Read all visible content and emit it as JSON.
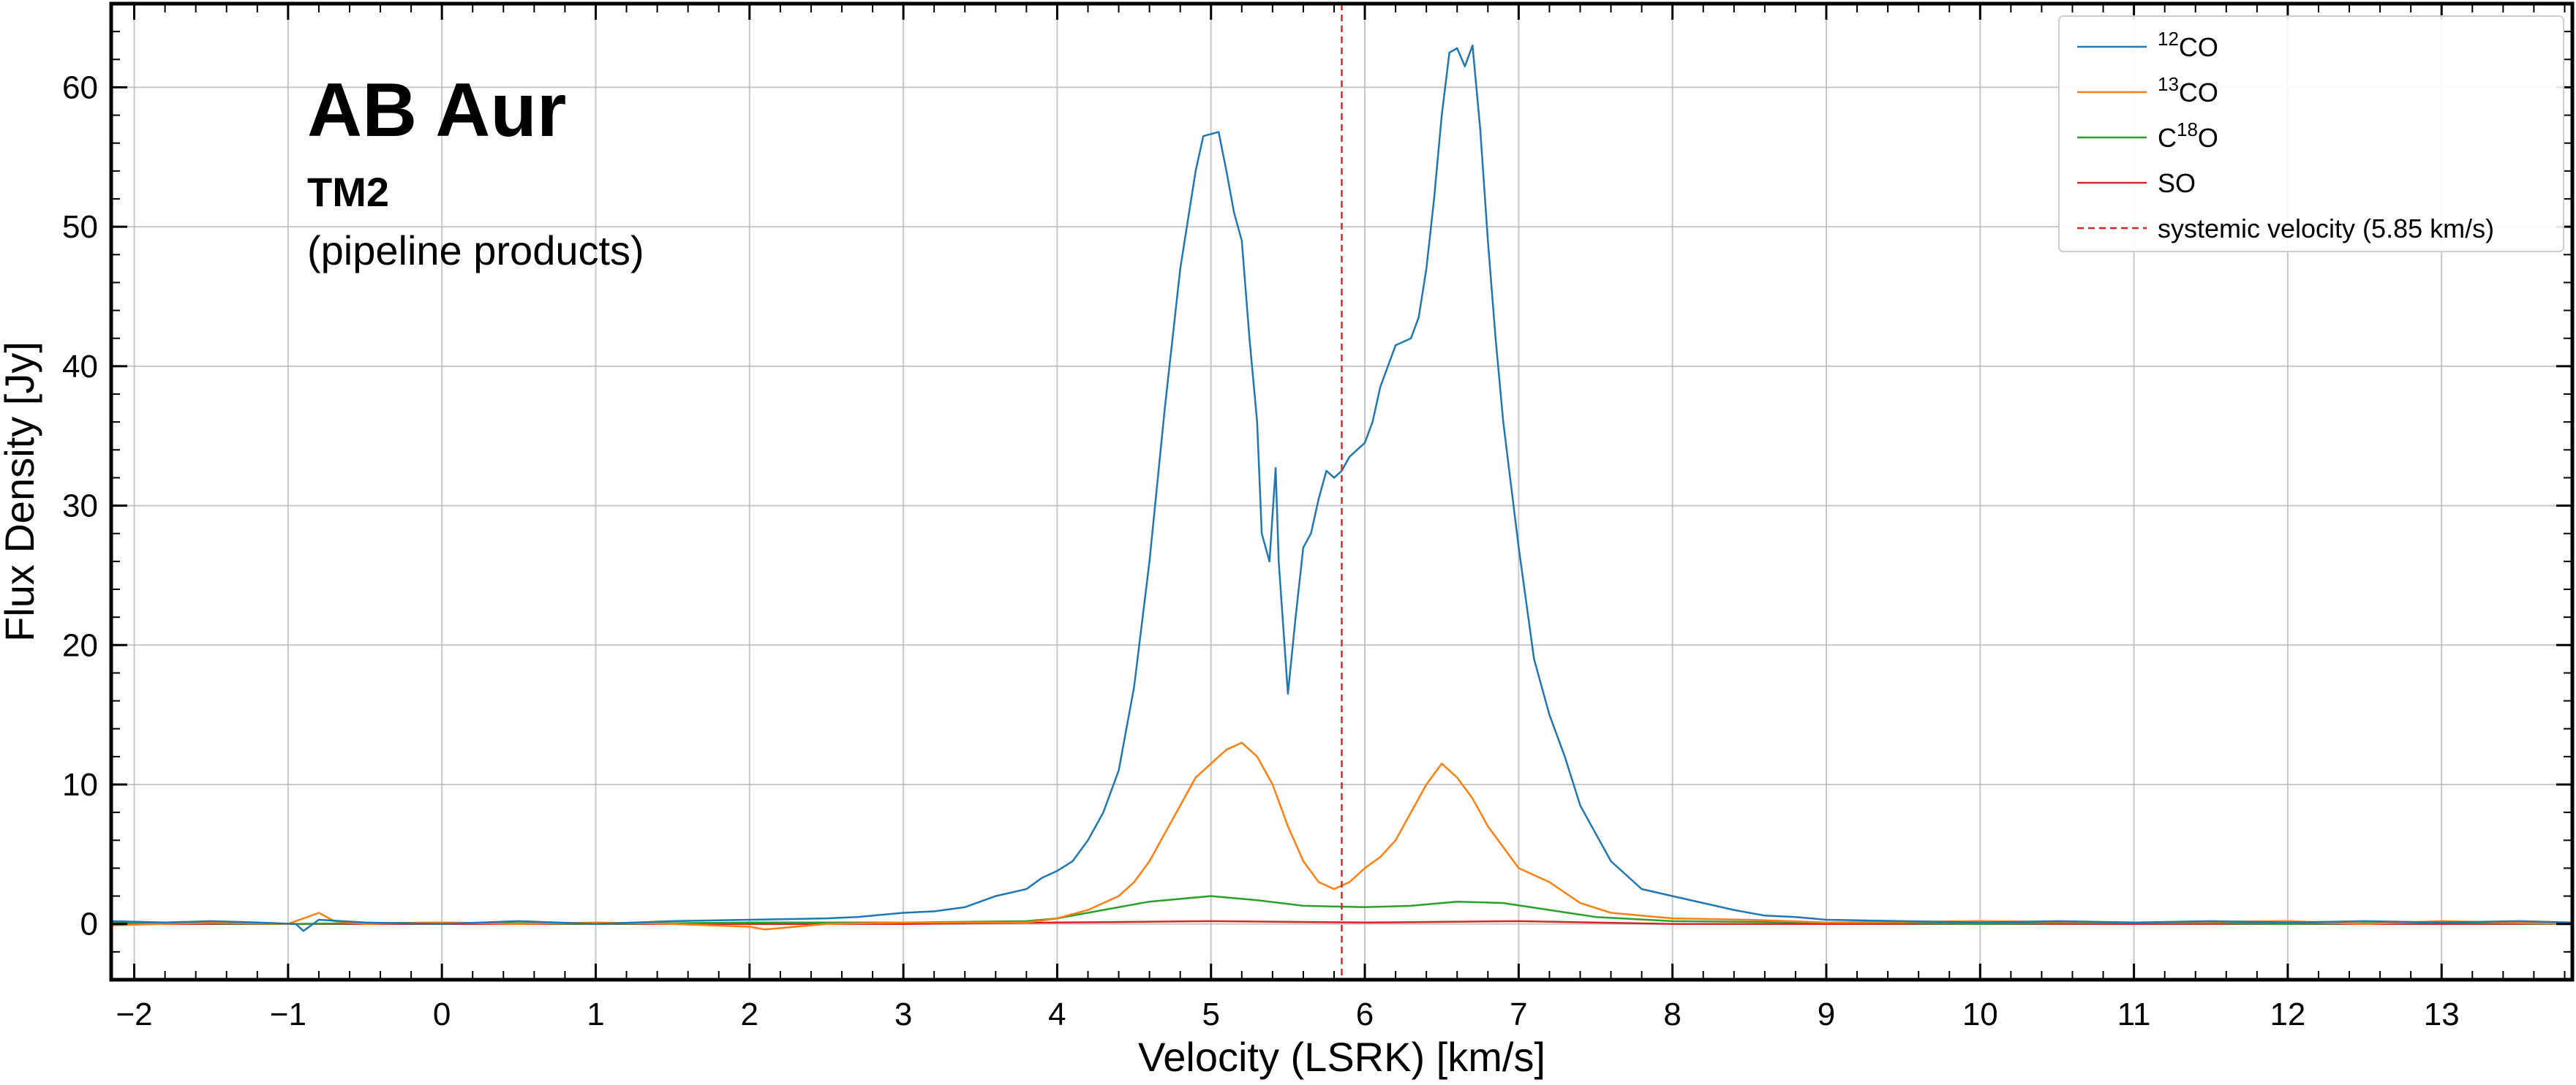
{
  "chart_data": {
    "type": "line",
    "title": "AB Aur",
    "subtitle": "TM2",
    "note": "(pipeline products)",
    "xlabel": "Velocity (LSRK) [km/s]",
    "ylabel": "Flux Density [Jy]",
    "xlim": [
      -2.15,
      13.85
    ],
    "ylim": [
      -4,
      66
    ],
    "xticks": [
      -2,
      -1,
      0,
      1,
      2,
      3,
      4,
      5,
      6,
      7,
      8,
      9,
      10,
      11,
      12,
      13
    ],
    "xtick_labels": [
      "−2",
      "−1",
      "0",
      "1",
      "2",
      "3",
      "4",
      "5",
      "6",
      "7",
      "8",
      "9",
      "10",
      "11",
      "12",
      "13"
    ],
    "yticks": [
      0,
      10,
      20,
      30,
      40,
      50,
      60
    ],
    "ytick_labels": [
      "0",
      "10",
      "20",
      "30",
      "40",
      "50",
      "60"
    ],
    "grid": true,
    "legend_position": "top-right",
    "systemic_velocity": {
      "x": 5.85,
      "label": "systemic velocity (5.85 km/s)",
      "color": "#d62728",
      "style": "dashed"
    },
    "series": [
      {
        "name": "12CO",
        "legend_sup": "12",
        "legend_pre": "",
        "legend_post": "CO",
        "color": "#1f77b4",
        "points": [
          [
            -2.15,
            0.2
          ],
          [
            -1.8,
            0.1
          ],
          [
            -1.5,
            0.2
          ],
          [
            -1.2,
            0.1
          ],
          [
            -0.95,
            0.0
          ],
          [
            -0.9,
            -0.5
          ],
          [
            -0.8,
            0.3
          ],
          [
            -0.5,
            0.1
          ],
          [
            0,
            0.0
          ],
          [
            0.5,
            0.2
          ],
          [
            1.0,
            0.0
          ],
          [
            1.5,
            0.2
          ],
          [
            2.0,
            0.3
          ],
          [
            2.5,
            0.4
          ],
          [
            2.7,
            0.5
          ],
          [
            3.0,
            0.8
          ],
          [
            3.2,
            0.9
          ],
          [
            3.4,
            1.2
          ],
          [
            3.6,
            2.0
          ],
          [
            3.8,
            2.5
          ],
          [
            3.9,
            3.3
          ],
          [
            4.0,
            3.8
          ],
          [
            4.1,
            4.5
          ],
          [
            4.2,
            6.0
          ],
          [
            4.3,
            8.0
          ],
          [
            4.4,
            11.0
          ],
          [
            4.5,
            17.0
          ],
          [
            4.6,
            26.0
          ],
          [
            4.7,
            37.0
          ],
          [
            4.8,
            47.0
          ],
          [
            4.9,
            54.0
          ],
          [
            4.95,
            56.5
          ],
          [
            5.05,
            56.8
          ],
          [
            5.1,
            54.0
          ],
          [
            5.15,
            51.0
          ],
          [
            5.2,
            49.0
          ],
          [
            5.25,
            42.0
          ],
          [
            5.3,
            36.0
          ],
          [
            5.33,
            28.0
          ],
          [
            5.38,
            26.0
          ],
          [
            5.42,
            32.7
          ],
          [
            5.44,
            26.0
          ],
          [
            5.5,
            16.5
          ],
          [
            5.55,
            22.0
          ],
          [
            5.6,
            27.0
          ],
          [
            5.65,
            28.0
          ],
          [
            5.7,
            30.5
          ],
          [
            5.75,
            32.5
          ],
          [
            5.8,
            32.0
          ],
          [
            5.85,
            32.5
          ],
          [
            5.9,
            33.5
          ],
          [
            6.0,
            34.5
          ],
          [
            6.05,
            36.0
          ],
          [
            6.1,
            38.5
          ],
          [
            6.2,
            41.5
          ],
          [
            6.3,
            42.0
          ],
          [
            6.35,
            43.5
          ],
          [
            6.4,
            47.0
          ],
          [
            6.45,
            52.0
          ],
          [
            6.5,
            58.0
          ],
          [
            6.55,
            62.5
          ],
          [
            6.6,
            62.8
          ],
          [
            6.65,
            61.5
          ],
          [
            6.7,
            63.0
          ],
          [
            6.75,
            57.0
          ],
          [
            6.8,
            49.0
          ],
          [
            6.85,
            42.0
          ],
          [
            6.9,
            36.0
          ],
          [
            7.0,
            27.0
          ],
          [
            7.1,
            19.0
          ],
          [
            7.2,
            15.0
          ],
          [
            7.3,
            12.0
          ],
          [
            7.4,
            8.5
          ],
          [
            7.5,
            6.5
          ],
          [
            7.6,
            4.5
          ],
          [
            7.7,
            3.5
          ],
          [
            7.8,
            2.5
          ],
          [
            8.0,
            2.0
          ],
          [
            8.2,
            1.5
          ],
          [
            8.4,
            1.0
          ],
          [
            8.6,
            0.6
          ],
          [
            8.8,
            0.5
          ],
          [
            9.0,
            0.3
          ],
          [
            9.5,
            0.2
          ],
          [
            10.0,
            0.1
          ],
          [
            10.5,
            0.2
          ],
          [
            11.0,
            0.1
          ],
          [
            11.5,
            0.2
          ],
          [
            12.0,
            0.1
          ],
          [
            12.5,
            0.2
          ],
          [
            13.0,
            0.1
          ],
          [
            13.5,
            0.2
          ],
          [
            13.85,
            0.1
          ]
        ]
      },
      {
        "name": "13CO",
        "legend_sup": "13",
        "legend_pre": "",
        "legend_post": "CO",
        "color": "#ff7f0e",
        "points": [
          [
            -2.15,
            -0.1
          ],
          [
            -1.5,
            0.1
          ],
          [
            -1.0,
            0.0
          ],
          [
            -0.8,
            0.8
          ],
          [
            -0.7,
            0.2
          ],
          [
            -0.5,
            0.0
          ],
          [
            0,
            0.1
          ],
          [
            0.5,
            0.0
          ],
          [
            1.0,
            0.1
          ],
          [
            1.5,
            0.0
          ],
          [
            2.0,
            -0.2
          ],
          [
            2.1,
            -0.4
          ],
          [
            2.5,
            0.0
          ],
          [
            3.0,
            0.1
          ],
          [
            3.5,
            0.1
          ],
          [
            3.8,
            0.1
          ],
          [
            4.0,
            0.4
          ],
          [
            4.2,
            1.0
          ],
          [
            4.3,
            1.5
          ],
          [
            4.4,
            2.0
          ],
          [
            4.5,
            3.0
          ],
          [
            4.6,
            4.5
          ],
          [
            4.7,
            6.5
          ],
          [
            4.8,
            8.5
          ],
          [
            4.9,
            10.5
          ],
          [
            5.0,
            11.5
          ],
          [
            5.1,
            12.5
          ],
          [
            5.2,
            13.0
          ],
          [
            5.3,
            12.0
          ],
          [
            5.4,
            10.0
          ],
          [
            5.5,
            7.0
          ],
          [
            5.6,
            4.5
          ],
          [
            5.7,
            3.0
          ],
          [
            5.8,
            2.5
          ],
          [
            5.9,
            3.0
          ],
          [
            6.0,
            4.0
          ],
          [
            6.1,
            4.8
          ],
          [
            6.2,
            6.0
          ],
          [
            6.3,
            8.0
          ],
          [
            6.4,
            10.0
          ],
          [
            6.5,
            11.5
          ],
          [
            6.6,
            10.5
          ],
          [
            6.7,
            9.0
          ],
          [
            6.8,
            7.0
          ],
          [
            6.9,
            5.5
          ],
          [
            7.0,
            4.0
          ],
          [
            7.2,
            3.0
          ],
          [
            7.4,
            1.5
          ],
          [
            7.6,
            0.8
          ],
          [
            8.0,
            0.4
          ],
          [
            8.5,
            0.3
          ],
          [
            9.0,
            0.1
          ],
          [
            10.0,
            0.2
          ],
          [
            11.0,
            0.1
          ],
          [
            12.0,
            0.2
          ],
          [
            12.5,
            0.0
          ],
          [
            13.0,
            0.2
          ],
          [
            13.85,
            0.0
          ]
        ]
      },
      {
        "name": "C18O",
        "legend_sup": "18",
        "legend_pre": "C",
        "legend_post": "O",
        "color": "#2ca02c",
        "points": [
          [
            -2.15,
            0.1
          ],
          [
            -1.0,
            0.0
          ],
          [
            0,
            0.1
          ],
          [
            1.0,
            0.0
          ],
          [
            2.0,
            0.1
          ],
          [
            3.0,
            0.1
          ],
          [
            3.8,
            0.2
          ],
          [
            4.0,
            0.4
          ],
          [
            4.3,
            1.0
          ],
          [
            4.6,
            1.6
          ],
          [
            5.0,
            2.0
          ],
          [
            5.3,
            1.7
          ],
          [
            5.6,
            1.3
          ],
          [
            6.0,
            1.2
          ],
          [
            6.3,
            1.3
          ],
          [
            6.6,
            1.6
          ],
          [
            6.9,
            1.5
          ],
          [
            7.2,
            1.0
          ],
          [
            7.5,
            0.5
          ],
          [
            8.0,
            0.2
          ],
          [
            9.0,
            0.1
          ],
          [
            10.0,
            0.0
          ],
          [
            11.0,
            0.1
          ],
          [
            12.0,
            0.0
          ],
          [
            13.0,
            0.1
          ],
          [
            13.85,
            0.0
          ]
        ]
      },
      {
        "name": "SO",
        "legend_sup": "",
        "legend_pre": "SO",
        "legend_post": "",
        "color": "#d62728",
        "points": [
          [
            -2.15,
            0.0
          ],
          [
            -1.0,
            0.0
          ],
          [
            0,
            0.0
          ],
          [
            1.0,
            0.0
          ],
          [
            2.0,
            0.0
          ],
          [
            3.0,
            0.0
          ],
          [
            4.0,
            0.1
          ],
          [
            5.0,
            0.2
          ],
          [
            6.0,
            0.1
          ],
          [
            7.0,
            0.2
          ],
          [
            8.0,
            0.0
          ],
          [
            9.0,
            0.0
          ],
          [
            10.0,
            0.0
          ],
          [
            11.0,
            0.0
          ],
          [
            12.0,
            0.0
          ],
          [
            13.0,
            0.0
          ],
          [
            13.85,
            0.0
          ]
        ]
      }
    ]
  }
}
